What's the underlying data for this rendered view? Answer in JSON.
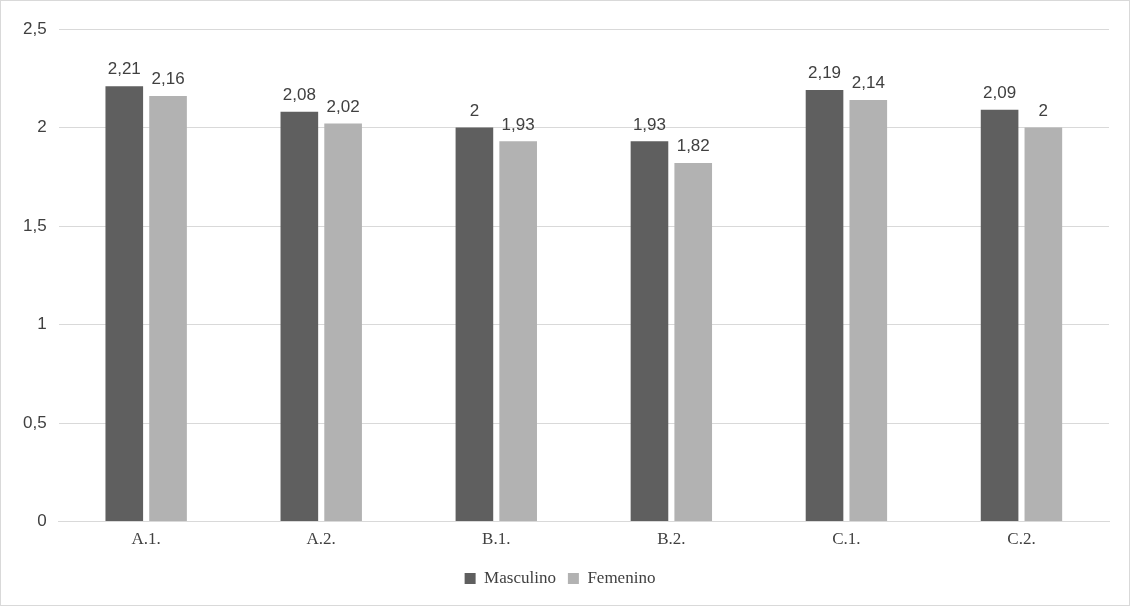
{
  "chart_data": {
    "type": "bar",
    "categories": [
      "A.1.",
      "A.2.",
      "B.1.",
      "B.2.",
      "C.1.",
      "C.2."
    ],
    "series": [
      {
        "name": "Masculino",
        "color": "#5f5f5f",
        "values": [
          2.21,
          2.08,
          2,
          1.93,
          2.19,
          2.09
        ],
        "value_labels": [
          "2,21",
          "2,08",
          "2",
          "1,93",
          "2,19",
          "2,09"
        ]
      },
      {
        "name": "Femenino",
        "color": "#b2b2b2",
        "values": [
          2.16,
          2.02,
          1.93,
          1.82,
          2.14,
          2
        ],
        "value_labels": [
          "2,16",
          "2,02",
          "1,93",
          "1,82",
          "2,14",
          "2"
        ]
      }
    ],
    "ylim": [
      0,
      2.5
    ],
    "yticks": [
      0,
      {
        "value": 0.5,
        "label": "0,5"
      },
      1,
      {
        "value": 1.5,
        "label": "1,5"
      },
      2,
      {
        "value": 2.5,
        "label": "2,5"
      }
    ],
    "grid": "y",
    "legend": "bottom"
  }
}
